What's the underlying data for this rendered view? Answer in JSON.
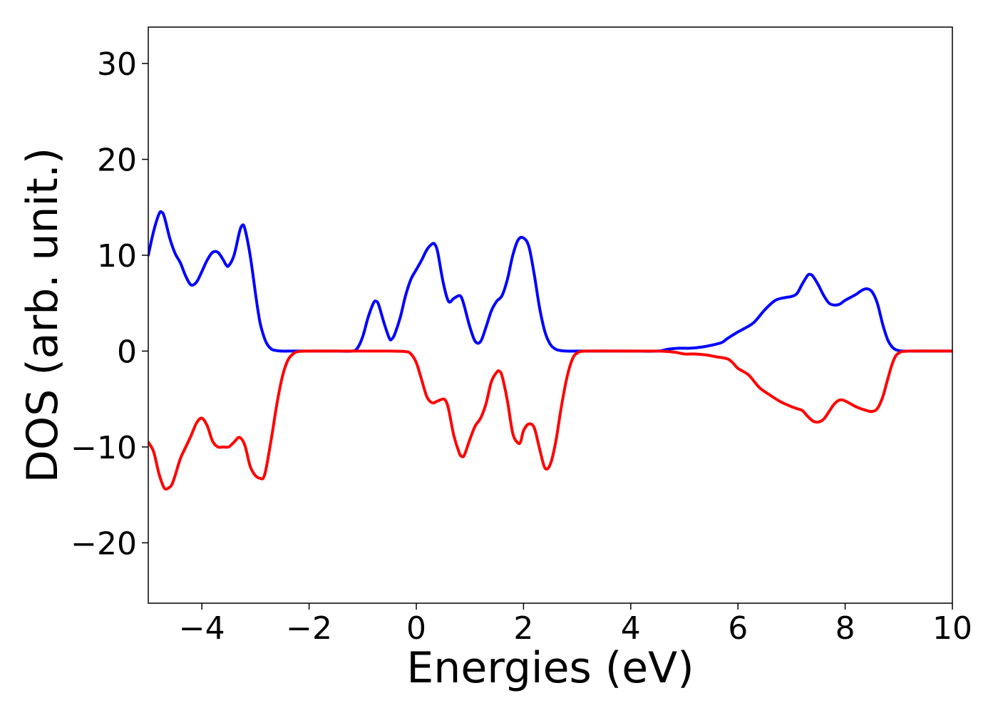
{
  "chart_data": {
    "type": "line",
    "title": "",
    "xlabel": "Energies (eV)",
    "ylabel": "DOS (arb. unit.)",
    "xlim": [
      -5,
      10
    ],
    "ylim": [
      -26.3,
      33.8
    ],
    "xticks": [
      -4,
      -2,
      0,
      2,
      4,
      6,
      8,
      10
    ],
    "xtick_labels": [
      "−4",
      "−2",
      "0",
      "2",
      "4",
      "6",
      "8",
      "10"
    ],
    "yticks": [
      -20,
      -10,
      0,
      10,
      20,
      30
    ],
    "ytick_labels": [
      "−20",
      "−10",
      "0",
      "10",
      "20",
      "30"
    ],
    "grid": false,
    "legend": false,
    "series": [
      {
        "color": "#0000ff",
        "x": [
          -5.0,
          -4.9,
          -4.8,
          -4.75,
          -4.7,
          -4.6,
          -4.5,
          -4.4,
          -4.3,
          -4.2,
          -4.1,
          -4.0,
          -3.9,
          -3.8,
          -3.7,
          -3.6,
          -3.55,
          -3.5,
          -3.4,
          -3.3,
          -3.25,
          -3.2,
          -3.1,
          -3.0,
          -2.95,
          -2.9,
          -2.8,
          -2.7,
          -2.6,
          -2.5,
          -2.4,
          -2.3,
          -2.2,
          -2.0,
          -1.5,
          -1.2,
          -1.1,
          -1.0,
          -0.9,
          -0.8,
          -0.75,
          -0.7,
          -0.6,
          -0.5,
          -0.45,
          -0.4,
          -0.3,
          -0.2,
          -0.1,
          0.0,
          0.1,
          0.2,
          0.3,
          0.35,
          0.4,
          0.5,
          0.6,
          0.7,
          0.8,
          0.85,
          0.9,
          1.0,
          1.1,
          1.2,
          1.3,
          1.4,
          1.5,
          1.6,
          1.7,
          1.8,
          1.9,
          2.0,
          2.1,
          2.2,
          2.3,
          2.4,
          2.5,
          2.6,
          2.7,
          2.8,
          3.0,
          3.5,
          4.0,
          4.5,
          4.7,
          4.9,
          5.1,
          5.3,
          5.5,
          5.7,
          5.8,
          6.0,
          6.1,
          6.3,
          6.5,
          6.7,
          6.9,
          7.0,
          7.1,
          7.2,
          7.3,
          7.35,
          7.4,
          7.5,
          7.6,
          7.7,
          7.8,
          7.9,
          8.0,
          8.2,
          8.3,
          8.4,
          8.5,
          8.6,
          8.7,
          8.8,
          8.9,
          9.0,
          9.1,
          9.2,
          9.5,
          10.0
        ],
        "y": [
          10.0,
          12.5,
          14.3,
          14.5,
          14.0,
          11.8,
          10.2,
          9.2,
          7.8,
          6.9,
          7.2,
          8.3,
          9.5,
          10.3,
          10.3,
          9.5,
          9.0,
          8.9,
          10.0,
          12.4,
          13.1,
          12.8,
          10.0,
          6.0,
          4.1,
          2.6,
          0.9,
          0.2,
          0.05,
          0.0,
          0.0,
          0.0,
          0.0,
          0.0,
          0.0,
          0.0,
          0.3,
          1.5,
          3.5,
          5.0,
          5.2,
          4.8,
          2.9,
          1.3,
          1.3,
          1.8,
          3.5,
          5.8,
          7.5,
          8.5,
          9.5,
          10.6,
          11.2,
          11.1,
          10.3,
          7.2,
          5.2,
          5.5,
          5.8,
          5.5,
          4.6,
          2.5,
          1.0,
          1.0,
          2.5,
          4.2,
          5.2,
          5.8,
          7.5,
          10.0,
          11.6,
          11.8,
          10.9,
          8.0,
          4.5,
          2.0,
          0.7,
          0.2,
          0.05,
          0.0,
          0.0,
          0.0,
          0.0,
          0.0,
          0.2,
          0.3,
          0.3,
          0.4,
          0.6,
          0.9,
          1.3,
          2.0,
          2.3,
          3.0,
          4.3,
          5.3,
          5.6,
          5.7,
          6.0,
          7.0,
          7.9,
          8.0,
          7.8,
          6.9,
          5.8,
          5.0,
          4.8,
          4.9,
          5.3,
          5.9,
          6.3,
          6.5,
          6.2,
          5.0,
          2.8,
          1.1,
          0.3,
          0.05,
          0.0,
          0.0,
          0.0,
          0.0
        ]
      },
      {
        "color": "#ff0000",
        "x": [
          -5.0,
          -4.9,
          -4.8,
          -4.7,
          -4.6,
          -4.55,
          -4.5,
          -4.4,
          -4.3,
          -4.2,
          -4.1,
          -4.0,
          -3.9,
          -3.8,
          -3.7,
          -3.6,
          -3.5,
          -3.4,
          -3.3,
          -3.2,
          -3.1,
          -3.0,
          -2.9,
          -2.85,
          -2.8,
          -2.7,
          -2.6,
          -2.5,
          -2.4,
          -2.3,
          -2.2,
          -2.0,
          -1.0,
          -0.5,
          -0.2,
          -0.1,
          0.0,
          0.1,
          0.2,
          0.3,
          0.4,
          0.5,
          0.55,
          0.6,
          0.7,
          0.8,
          0.85,
          0.9,
          1.0,
          1.1,
          1.2,
          1.3,
          1.4,
          1.5,
          1.55,
          1.6,
          1.7,
          1.8,
          1.9,
          1.95,
          2.0,
          2.1,
          2.2,
          2.3,
          2.4,
          2.5,
          2.6,
          2.7,
          2.8,
          2.9,
          3.0,
          3.2,
          4.0,
          4.5,
          4.8,
          5.0,
          5.2,
          5.4,
          5.6,
          5.8,
          5.9,
          6.0,
          6.2,
          6.4,
          6.6,
          6.8,
          7.0,
          7.1,
          7.2,
          7.3,
          7.4,
          7.5,
          7.6,
          7.7,
          7.8,
          7.9,
          8.0,
          8.2,
          8.4,
          8.5,
          8.6,
          8.7,
          8.8,
          8.9,
          9.0,
          9.2,
          10.0
        ],
        "y": [
          -9.5,
          -10.5,
          -12.8,
          -14.3,
          -14.2,
          -13.8,
          -13.0,
          -11.2,
          -10.0,
          -8.8,
          -7.5,
          -7.0,
          -7.8,
          -9.4,
          -10.0,
          -10.0,
          -10.0,
          -9.5,
          -9.0,
          -9.8,
          -12.0,
          -13.0,
          -13.3,
          -13.2,
          -12.2,
          -9.0,
          -5.5,
          -2.7,
          -1.0,
          -0.3,
          -0.05,
          0.0,
          0.0,
          0.0,
          -0.05,
          -0.3,
          -1.2,
          -3.0,
          -4.8,
          -5.4,
          -5.2,
          -5.0,
          -5.2,
          -6.0,
          -8.8,
          -10.6,
          -11.0,
          -10.8,
          -9.2,
          -7.8,
          -7.0,
          -5.5,
          -3.2,
          -2.2,
          -2.1,
          -2.6,
          -5.2,
          -8.6,
          -9.6,
          -9.4,
          -8.3,
          -7.6,
          -8.0,
          -10.2,
          -12.2,
          -11.8,
          -9.5,
          -6.0,
          -3.0,
          -1.0,
          -0.2,
          0.0,
          0.0,
          0.0,
          -0.1,
          -0.3,
          -0.3,
          -0.4,
          -0.6,
          -0.8,
          -1.2,
          -1.8,
          -2.5,
          -3.8,
          -4.6,
          -5.3,
          -5.8,
          -6.0,
          -6.2,
          -6.8,
          -7.3,
          -7.4,
          -7.1,
          -6.3,
          -5.5,
          -5.1,
          -5.2,
          -5.8,
          -6.2,
          -6.3,
          -6.0,
          -4.8,
          -2.8,
          -1.0,
          -0.2,
          0.0,
          0.0
        ]
      }
    ]
  }
}
